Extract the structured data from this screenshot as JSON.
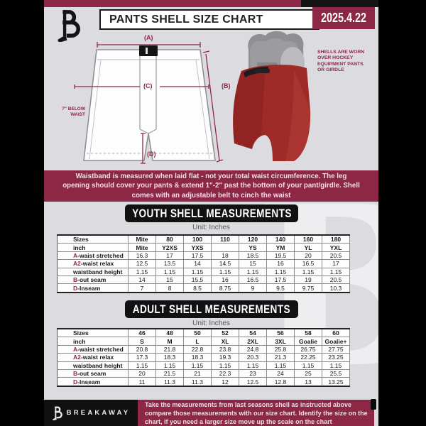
{
  "header": {
    "title": "PANTS SHELL SIZE CHART",
    "date": "2025.4.22"
  },
  "diagram": {
    "label_a": "(A)",
    "label_b": "(B)",
    "label_c": "(C)",
    "label_d": "(D)",
    "waist_note": "7\" BELOW WAIST",
    "photo_caption": "SHELLS ARE WORN OVER HOCKEY EQUIPMENT PANTS OR GIRDLE"
  },
  "notice_banner": "Waistband is measured when laid flat - not your total waist circumference. The leg opening should cover your pants & extend 1\"-2\" past the bottom of your pant/girdle. Shell comes with an adjustable belt to cinch the waist",
  "youth_section": {
    "title": "YOUTH SHELL MEASUREMENTS",
    "unit": "Unit: Inches"
  },
  "adult_section": {
    "title": "ADULT SHELL MEASUREMENTS",
    "unit": "Unit: Inches"
  },
  "youth_table": {
    "rows": [
      {
        "prefix": "",
        "label": "Sizes",
        "header": true,
        "values": [
          "Mite",
          "80",
          "100",
          "110",
          "120",
          "140",
          "160",
          "180"
        ]
      },
      {
        "prefix": "",
        "label": "inch",
        "header": true,
        "values": [
          "Mite",
          "Y2XS",
          "YXS",
          "",
          "YS",
          "YM",
          "YL",
          "YXL"
        ]
      },
      {
        "prefix": "A",
        "label": "-waist stretched",
        "values": [
          "16.3",
          "17",
          "17.5",
          "18",
          "18.5",
          "19.5",
          "20",
          "20.5"
        ]
      },
      {
        "prefix": "A2",
        "label": "-waist relax",
        "values": [
          "12.5",
          "13.5",
          "14",
          "14.5",
          "15",
          "16",
          "16.5",
          "17"
        ]
      },
      {
        "prefix": "",
        "label": "waistband height",
        "values": [
          "1.15",
          "1.15",
          "1.15",
          "1.15",
          "1.15",
          "1.15",
          "1.15",
          "1.15"
        ]
      },
      {
        "prefix": "B",
        "label": "-out seam",
        "values": [
          "14",
          "15",
          "15.5",
          "16",
          "16.5",
          "17.5",
          "19",
          "20.5"
        ]
      },
      {
        "prefix": "D",
        "label": "-Inseam",
        "values": [
          "7",
          "8",
          "8.5",
          "8.75",
          "9",
          "9.5",
          "9.75",
          "10.3"
        ]
      }
    ]
  },
  "adult_table": {
    "rows": [
      {
        "prefix": "",
        "label": "Sizes",
        "header": true,
        "values": [
          "46",
          "48",
          "50",
          "52",
          "54",
          "56",
          "58",
          "60"
        ]
      },
      {
        "prefix": "",
        "label": "inch",
        "header": true,
        "values": [
          "S",
          "M",
          "L",
          "XL",
          "2XL",
          "3XL",
          "Goalie",
          "Goalie+"
        ]
      },
      {
        "prefix": "A",
        "label": "-waist stretched",
        "values": [
          "20.8",
          "21.8",
          "22.8",
          "23.8",
          "24.8",
          "25.8",
          "26.75",
          "27.75"
        ]
      },
      {
        "prefix": "A2",
        "label": "-waist relax",
        "values": [
          "17.3",
          "18.3",
          "18.3",
          "19.3",
          "20.3",
          "21.3",
          "22.25",
          "23.25"
        ]
      },
      {
        "prefix": "",
        "label": "waistband height",
        "values": [
          "1.15",
          "1.15",
          "1.15",
          "1.15",
          "1.15",
          "1.15",
          "1.15",
          "1.15"
        ]
      },
      {
        "prefix": "B",
        "label": "-out seam",
        "values": [
          "20",
          "21.5",
          "21",
          "22.3",
          "23",
          "24",
          "25",
          "25.5"
        ]
      },
      {
        "prefix": "D",
        "label": "-Inseam",
        "values": [
          "11",
          "11.3",
          "11.3",
          "12",
          "12.5",
          "12.8",
          "13",
          "13.25"
        ]
      }
    ]
  },
  "footer": {
    "brand": "BREAKAWAY",
    "note": "Take the measurements from last seasons shell as instructed above compare those measurements  with our size chart. Identify the size on the chart, if you need a larger size move up the scale on the chart"
  },
  "watermark": "B",
  "colors": {
    "maroon": "#8c2745",
    "page_bg": "#dcdce0",
    "black": "#141414",
    "shell_red": "#9e2b28"
  }
}
